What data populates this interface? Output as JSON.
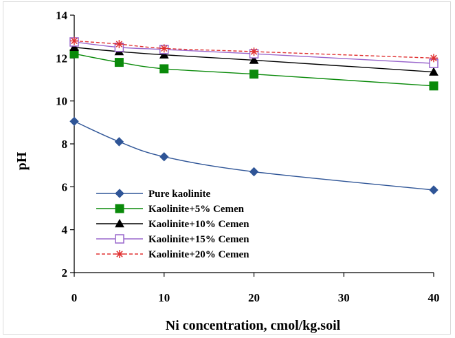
{
  "chart_data": {
    "type": "line",
    "title": "",
    "xlabel": "Ni concentration, cmol/kg.soil",
    "ylabel": "pH",
    "xlim": [
      0,
      40
    ],
    "ylim": [
      2,
      14
    ],
    "xticks": [
      0,
      10,
      20,
      30,
      40
    ],
    "yticks": [
      2,
      4,
      6,
      8,
      10,
      12,
      14
    ],
    "grid": false,
    "legend_position": "bottom-left",
    "x": [
      0,
      5,
      10,
      20,
      40
    ],
    "series": [
      {
        "name": "Pure kaolinite",
        "values": [
          9.05,
          8.1,
          7.4,
          6.7,
          5.85
        ],
        "color": "#2f5597",
        "marker": "diamond",
        "dash": "solid"
      },
      {
        "name": "Kaolinite+5% Cemen",
        "values": [
          12.2,
          11.8,
          11.5,
          11.25,
          10.7
        ],
        "color": "#0a8a0a",
        "marker": "filled-square",
        "dash": "solid"
      },
      {
        "name": "Kaolinite+10% Cemen",
        "values": [
          12.5,
          12.3,
          12.15,
          11.9,
          11.35
        ],
        "color": "#000000",
        "marker": "filled-triangle",
        "dash": "solid"
      },
      {
        "name": "Kaolinite+15% Cemen",
        "values": [
          12.75,
          12.5,
          12.4,
          12.2,
          11.75
        ],
        "color": "#9966cc",
        "marker": "open-square",
        "dash": "solid"
      },
      {
        "name": "Kaolinite+20% Cemen",
        "values": [
          12.8,
          12.65,
          12.45,
          12.3,
          12.0
        ],
        "color": "#e03030",
        "marker": "asterisk",
        "dash": "dashed"
      }
    ]
  }
}
